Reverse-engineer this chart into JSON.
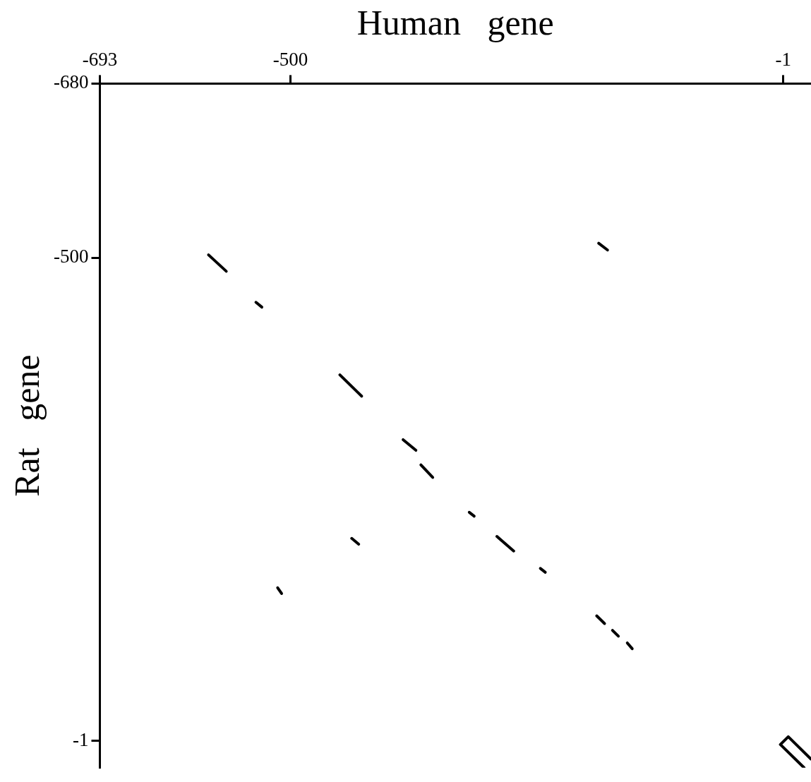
{
  "chart_data": {
    "type": "line",
    "xlabel": "Human   gene",
    "ylabel": "Rat   gene",
    "xlim": [
      -693,
      27
    ],
    "ylim": [
      27,
      -680
    ],
    "xticks": [
      -693,
      -500,
      -1
    ],
    "yticks": [
      -680,
      -500,
      -1
    ],
    "grid": false,
    "legend": false,
    "marker": "none",
    "line_style": "solid",
    "series": [
      {
        "color": "#000000",
        "x": [
          -583,
          -565
        ],
        "values": [
          -503,
          -486
        ]
      },
      {
        "color": "#000000",
        "x": [
          -535,
          -529
        ],
        "values": [
          -454,
          -449
        ]
      },
      {
        "color": "#000000",
        "x": [
          -450,
          -428
        ],
        "values": [
          -379,
          -357
        ]
      },
      {
        "color": "#000000",
        "x": [
          -386,
          -373
        ],
        "values": [
          -312,
          -301
        ]
      },
      {
        "color": "#000000",
        "x": [
          -368,
          -356
        ],
        "values": [
          -286,
          -273
        ]
      },
      {
        "color": "#000000",
        "x": [
          -319,
          -314
        ],
        "values": [
          -237,
          -233
        ]
      },
      {
        "color": "#000000",
        "x": [
          -291,
          -274
        ],
        "values": [
          -212,
          -197
        ]
      },
      {
        "color": "#000000",
        "x": [
          -247,
          -242
        ],
        "values": [
          -179,
          -175
        ]
      },
      {
        "color": "#000000",
        "x": [
          -190,
          -182
        ],
        "values": [
          -130,
          -122
        ]
      },
      {
        "color": "#000000",
        "x": [
          -174,
          -168
        ],
        "values": [
          -115,
          -109
        ]
      },
      {
        "color": "#000000",
        "x": [
          -159,
          -154
        ],
        "values": [
          -102,
          -96
        ]
      },
      {
        "color": "#000000",
        "x": [
          -188,
          -179
        ],
        "values": [
          -515,
          -508
        ]
      },
      {
        "color": "#000000",
        "x": [
          -438,
          -431
        ],
        "values": [
          -210,
          -204
        ]
      },
      {
        "color": "#000000",
        "x": [
          -513,
          -509
        ],
        "values": [
          -159,
          -153
        ]
      },
      {
        "color": "#000000",
        "x": [
          20,
          -4,
          4,
          27
        ],
        "values": [
          27,
          3,
          -5,
          18
        ]
      }
    ]
  }
}
